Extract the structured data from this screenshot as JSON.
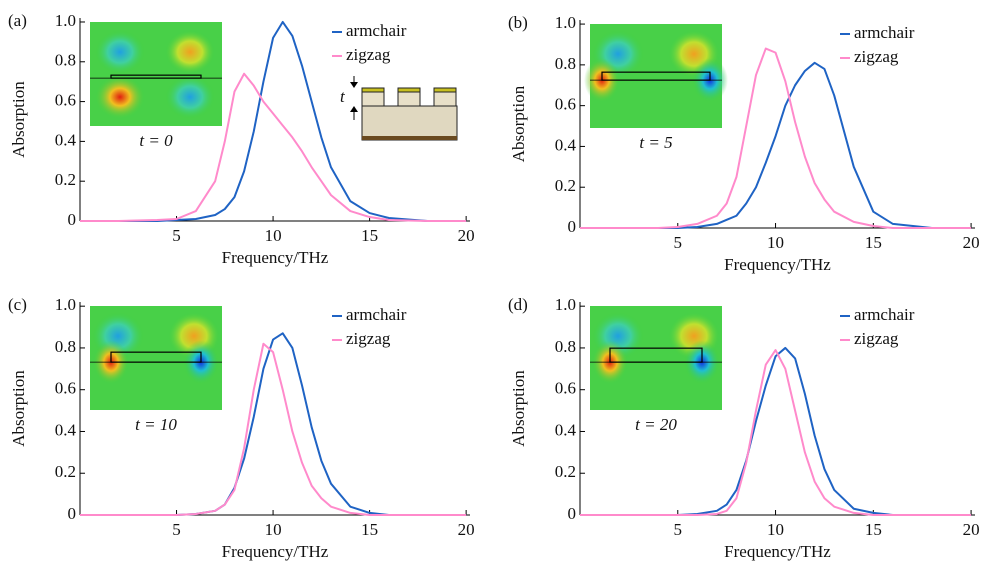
{
  "chart_data": [
    {
      "type": "line",
      "panel_label": "(a)",
      "annotation": "t = 0",
      "inset_label": "t",
      "x_label": "Frequency/THz",
      "y_label": "Absorption",
      "x": [
        0,
        2,
        4,
        5,
        6,
        7,
        7.5,
        8,
        8.5,
        9,
        9.5,
        10,
        10.5,
        11,
        11.5,
        12,
        12.5,
        13,
        14,
        15,
        16,
        18,
        20
      ],
      "series": [
        {
          "name": "armchair",
          "color": "#1f63c4",
          "values": [
            0,
            0,
            0,
            0.005,
            0.01,
            0.03,
            0.06,
            0.12,
            0.25,
            0.45,
            0.7,
            0.92,
            1.0,
            0.93,
            0.78,
            0.6,
            0.42,
            0.27,
            0.1,
            0.04,
            0.015,
            0,
            0
          ]
        },
        {
          "name": "zigzag",
          "color": "#ff8acb",
          "values": [
            0,
            0,
            0.005,
            0.01,
            0.05,
            0.2,
            0.4,
            0.65,
            0.74,
            0.68,
            0.6,
            0.54,
            0.48,
            0.42,
            0.35,
            0.27,
            0.2,
            0.13,
            0.05,
            0.02,
            0.005,
            0,
            0
          ]
        }
      ],
      "xlim": [
        0,
        20.2
      ],
      "ylim": [
        0,
        1.02
      ],
      "xticks": [
        5,
        10,
        15,
        20
      ],
      "yticks": [
        0,
        0.2,
        0.4,
        0.6,
        0.8,
        {
          "value": 1,
          "label": "1.0"
        }
      ]
    },
    {
      "type": "line",
      "panel_label": "(b)",
      "annotation": "t = 5",
      "x_label": "Frequency/THz",
      "y_label": "Absorption",
      "x": [
        0,
        2,
        4,
        5,
        6,
        7,
        7.5,
        8,
        8.5,
        9,
        9.5,
        10,
        10.5,
        11,
        11.5,
        12,
        12.5,
        13,
        14,
        15,
        16,
        18,
        20
      ],
      "series": [
        {
          "name": "armchair",
          "color": "#1f63c4",
          "values": [
            0,
            0,
            0,
            0,
            0.005,
            0.02,
            0.04,
            0.06,
            0.12,
            0.2,
            0.32,
            0.45,
            0.6,
            0.7,
            0.77,
            0.81,
            0.78,
            0.65,
            0.3,
            0.08,
            0.02,
            0,
            0
          ]
        },
        {
          "name": "zigzag",
          "color": "#ff8acb",
          "values": [
            0,
            0,
            0,
            0.005,
            0.02,
            0.06,
            0.12,
            0.25,
            0.5,
            0.75,
            0.88,
            0.86,
            0.72,
            0.52,
            0.35,
            0.22,
            0.14,
            0.08,
            0.03,
            0.01,
            0,
            0,
            0
          ]
        }
      ],
      "xlim": [
        0,
        20.2
      ],
      "ylim": [
        0,
        1.02
      ],
      "xticks": [
        5,
        10,
        15,
        20
      ],
      "yticks": [
        0,
        0.2,
        0.4,
        0.6,
        0.8,
        {
          "value": 1,
          "label": "1.0"
        }
      ]
    },
    {
      "type": "line",
      "panel_label": "(c)",
      "annotation": "t = 10",
      "x_label": "Frequency/THz",
      "y_label": "Absorption",
      "x": [
        0,
        2,
        4,
        5,
        6,
        7,
        7.5,
        8,
        8.5,
        9,
        9.5,
        10,
        10.5,
        11,
        11.5,
        12,
        12.5,
        13,
        14,
        15,
        16,
        18,
        20
      ],
      "series": [
        {
          "name": "armchair",
          "color": "#1f63c4",
          "values": [
            0,
            0,
            0,
            0,
            0.005,
            0.02,
            0.05,
            0.13,
            0.27,
            0.47,
            0.7,
            0.84,
            0.87,
            0.8,
            0.62,
            0.42,
            0.26,
            0.15,
            0.04,
            0.01,
            0,
            0,
            0
          ]
        },
        {
          "name": "zigzag",
          "color": "#ff8acb",
          "values": [
            0,
            0,
            0,
            0,
            0.005,
            0.02,
            0.05,
            0.12,
            0.32,
            0.6,
            0.82,
            0.78,
            0.6,
            0.4,
            0.25,
            0.14,
            0.08,
            0.04,
            0.01,
            0,
            0,
            0,
            0
          ]
        }
      ],
      "xlim": [
        0,
        20.2
      ],
      "ylim": [
        0,
        1.02
      ],
      "xticks": [
        5,
        10,
        15,
        20
      ],
      "yticks": [
        0,
        0.2,
        0.4,
        0.6,
        0.8,
        {
          "value": 1,
          "label": "1.0"
        }
      ]
    },
    {
      "type": "line",
      "panel_label": "(d)",
      "annotation": "t = 20",
      "x_label": "Frequency/THz",
      "y_label": "Absorption",
      "x": [
        0,
        2,
        4,
        5,
        6,
        7,
        7.5,
        8,
        8.5,
        9,
        9.5,
        10,
        10.5,
        11,
        11.5,
        12,
        12.5,
        13,
        14,
        15,
        16,
        18,
        20
      ],
      "series": [
        {
          "name": "armchair",
          "color": "#1f63c4",
          "values": [
            0,
            0,
            0,
            0,
            0.005,
            0.02,
            0.05,
            0.12,
            0.26,
            0.45,
            0.62,
            0.76,
            0.8,
            0.75,
            0.58,
            0.38,
            0.22,
            0.12,
            0.03,
            0.01,
            0,
            0,
            0
          ]
        },
        {
          "name": "zigzag",
          "color": "#ff8acb",
          "values": [
            0,
            0,
            0,
            0,
            0,
            0.005,
            0.02,
            0.08,
            0.25,
            0.5,
            0.72,
            0.79,
            0.7,
            0.5,
            0.3,
            0.16,
            0.08,
            0.04,
            0.01,
            0,
            0,
            0,
            0
          ]
        }
      ],
      "xlim": [
        0,
        20.2
      ],
      "ylim": [
        0,
        1.02
      ],
      "xticks": [
        5,
        10,
        15,
        20
      ],
      "yticks": [
        0,
        0.2,
        0.4,
        0.6,
        0.8,
        {
          "value": 1,
          "label": "1.0"
        }
      ]
    }
  ]
}
